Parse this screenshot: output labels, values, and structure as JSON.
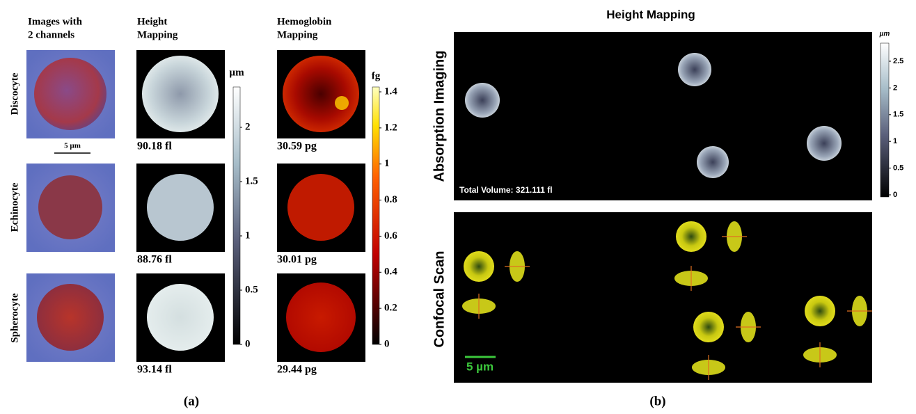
{
  "panel_a": {
    "column_headers": [
      [
        "Images with",
        "2 channels"
      ],
      [
        "Height",
        "Mapping"
      ],
      [
        "Hemoglobin",
        "Mapping"
      ]
    ],
    "row_labels": [
      "Discocyte",
      "Echinocyte",
      "Spherocyte"
    ],
    "scale_bar": "5 µm",
    "volumes": [
      "90.18 fl",
      "88.76 fl",
      "93.14 fl"
    ],
    "hemoglobin": [
      "30.59 pg",
      "30.01 pg",
      "29.44 pg"
    ],
    "height_colorbar": {
      "unit": "µm",
      "ticks": [
        "2",
        "1.5",
        "1",
        "0.5",
        "0"
      ]
    },
    "hemoglobin_colorbar": {
      "unit": "fg",
      "ticks": [
        "1.4",
        "1.2",
        "1",
        "0.8",
        "0.6",
        "0.4",
        "0.2",
        "0"
      ]
    },
    "caption": "(a)"
  },
  "panel_b": {
    "title": "Height Mapping",
    "row_labels": [
      "Absorption Imaging",
      "Confocal Scan"
    ],
    "total_volume": "Total Volume: 321.111 fl",
    "scale_bar": "5 µm",
    "colorbar": {
      "unit": "µm",
      "ticks": [
        "2.5",
        "2",
        "1.5",
        "1",
        "0.5",
        "0"
      ]
    },
    "caption": "(b)"
  }
}
